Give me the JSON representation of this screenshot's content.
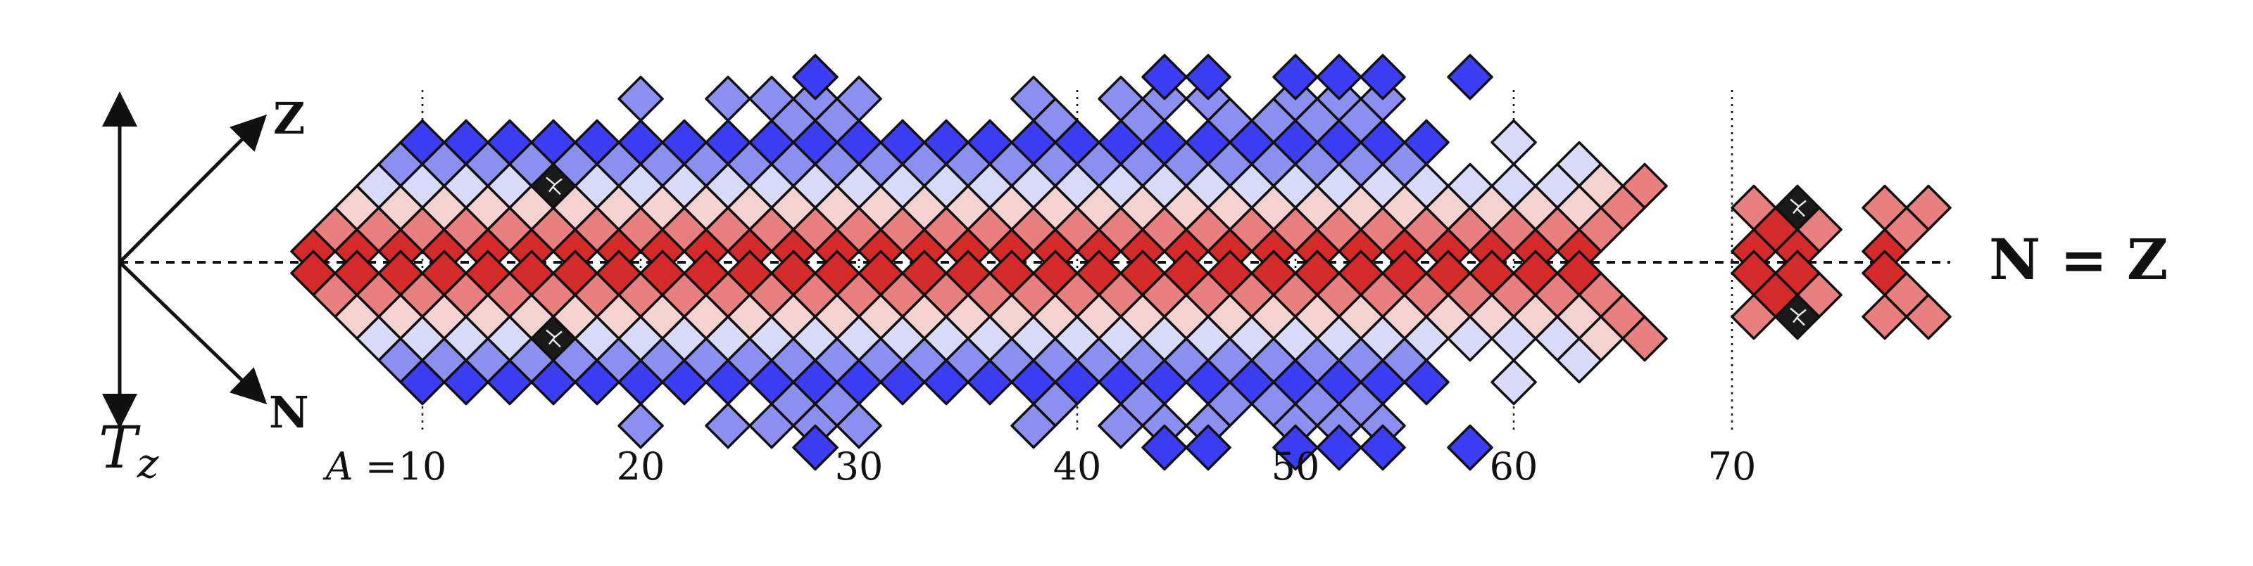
{
  "axes": {
    "vertical_label": "T",
    "vertical_subscript": "z",
    "z_label": "Z",
    "n_label": "N",
    "symmetry_label": "N = Z"
  },
  "mass_ticks": {
    "prefix": "A",
    "labels": [
      "10",
      "20",
      "30",
      "40",
      "50",
      "60",
      "70"
    ],
    "values": [
      10,
      20,
      30,
      40,
      50,
      60,
      70
    ]
  },
  "colors": {
    "cell_border": "#111111",
    "red_deep": "#d42a2a",
    "red_mid": "#e87f7f",
    "red_light": "#f5d2d2",
    "blue_light": "#d8daf8",
    "blue_mid": "#8b8ff0",
    "blue_deep": "#3c3cf2",
    "special": "#1a1a1a"
  },
  "chart_data": {
    "type": "heatmap",
    "x_quantity": "A",
    "y_quantity": "T_z",
    "color_scale": [
      "red_deep",
      "red_mid",
      "red_light",
      "blue_light",
      "blue_mid",
      "blue_deep"
    ],
    "columns": [
      {
        "A": 5,
        "cells": [
          "3:1",
          "4:1"
        ]
      },
      {
        "A": 6,
        "cells": [
          "2:2",
          "5:2"
        ]
      },
      {
        "A": 7,
        "cells": [
          "3:1",
          "4:1",
          "1:3",
          "6:3"
        ]
      },
      {
        "A": 8,
        "cells": [
          "2:2",
          "5:2",
          "0:4",
          "7:4"
        ]
      },
      {
        "A": 9,
        "cells": [
          "3:1",
          "4:1",
          "1:3",
          "6:3",
          "-1:5",
          "8:5"
        ]
      },
      {
        "A": 10,
        "cells": [
          "2:2",
          "5:2",
          "0:4",
          "7:4",
          "-2:6",
          "9:6"
        ]
      },
      {
        "A": 11,
        "cells": [
          "3:1",
          "4:1",
          "1:3",
          "6:3",
          "-1:5",
          "8:5"
        ]
      },
      {
        "A": 12,
        "cells": [
          "2:2",
          "5:2",
          "0:4",
          "7:4",
          "-2:6",
          "9:6"
        ]
      },
      {
        "A": 13,
        "cells": [
          "3:1",
          "4:1",
          "1:3",
          "6:3",
          "-1:5",
          "8:5"
        ]
      },
      {
        "A": 14,
        "cells": [
          "2:2",
          "5:2",
          "0:4",
          "7:4",
          "-2:6",
          "9:6"
        ]
      },
      {
        "A": 15,
        "cells": [
          "3:1",
          "4:1",
          "1:3",
          "6:3",
          "-1:5",
          "8:5"
        ]
      },
      {
        "A": 16,
        "cells": [
          "2:2",
          "5:2",
          "0:7",
          "7:7",
          "-2:6",
          "9:6"
        ]
      },
      {
        "A": 17,
        "cells": [
          "3:1",
          "4:1",
          "1:3",
          "6:3",
          "-1:5",
          "8:5"
        ]
      },
      {
        "A": 18,
        "cells": [
          "2:2",
          "5:2",
          "0:4",
          "7:4",
          "-2:6",
          "9:6"
        ]
      },
      {
        "A": 19,
        "cells": [
          "3:1",
          "4:1",
          "1:3",
          "6:3",
          "-1:5",
          "8:5"
        ]
      },
      {
        "A": 20,
        "cells": [
          "2:2",
          "5:2",
          "0:4",
          "7:4",
          "-2:6",
          "9:6",
          "-4:5",
          "11:5"
        ]
      },
      {
        "A": 21,
        "cells": [
          "3:1",
          "4:1",
          "1:3",
          "6:3",
          "-1:5",
          "8:5"
        ]
      },
      {
        "A": 22,
        "cells": [
          "2:2",
          "5:2",
          "0:4",
          "7:4",
          "-2:6",
          "9:6"
        ]
      },
      {
        "A": 23,
        "cells": [
          "3:1",
          "4:1",
          "1:3",
          "6:3",
          "-1:5",
          "8:5"
        ]
      },
      {
        "A": 24,
        "cells": [
          "2:2",
          "5:2",
          "0:4",
          "7:4",
          "-2:6",
          "9:6",
          "-4:5",
          "11:5"
        ]
      },
      {
        "A": 25,
        "cells": [
          "3:1",
          "4:1",
          "1:3",
          "6:3",
          "-1:5",
          "8:5"
        ]
      },
      {
        "A": 26,
        "cells": [
          "2:2",
          "5:2",
          "0:4",
          "7:4",
          "-2:6",
          "9:6",
          "-4:5",
          "11:5"
        ]
      },
      {
        "A": 27,
        "cells": [
          "3:1",
          "4:1",
          "1:3",
          "6:3",
          "-1:5",
          "8:5",
          "-3:5",
          "10:5"
        ]
      },
      {
        "A": 28,
        "cells": [
          "2:2",
          "5:2",
          "0:4",
          "7:4",
          "-2:6",
          "9:6",
          "-4:5",
          "11:5",
          "-5:6",
          "12:6"
        ]
      },
      {
        "A": 29,
        "cells": [
          "3:1",
          "4:1",
          "1:3",
          "6:3",
          "-1:5",
          "8:5",
          "-3:5",
          "10:5"
        ]
      },
      {
        "A": 30,
        "cells": [
          "2:2",
          "5:2",
          "0:4",
          "7:4",
          "-2:6",
          "9:6",
          "-4:5",
          "11:5"
        ]
      },
      {
        "A": 31,
        "cells": [
          "3:1",
          "4:1",
          "1:3",
          "6:3",
          "-1:5",
          "8:5"
        ]
      },
      {
        "A": 32,
        "cells": [
          "2:2",
          "5:2",
          "0:4",
          "7:4",
          "-2:6",
          "9:6"
        ]
      },
      {
        "A": 33,
        "cells": [
          "3:1",
          "4:1",
          "1:3",
          "6:3",
          "-1:5",
          "8:5"
        ]
      },
      {
        "A": 34,
        "cells": [
          "2:2",
          "5:2",
          "0:4",
          "7:4",
          "-2:6",
          "9:6"
        ]
      },
      {
        "A": 35,
        "cells": [
          "3:1",
          "4:1",
          "1:3",
          "6:3",
          "-1:5",
          "8:5"
        ]
      },
      {
        "A": 36,
        "cells": [
          "2:2",
          "5:2",
          "0:4",
          "7:4",
          "-2:6",
          "9:6"
        ]
      },
      {
        "A": 37,
        "cells": [
          "3:1",
          "4:1",
          "1:3",
          "6:3",
          "-1:5",
          "8:5"
        ]
      },
      {
        "A": 38,
        "cells": [
          "2:2",
          "5:2",
          "0:4",
          "7:4",
          "-2:6",
          "9:6",
          "-4:5",
          "11:5"
        ]
      },
      {
        "A": 39,
        "cells": [
          "3:1",
          "4:1",
          "1:3",
          "6:3",
          "-1:5",
          "8:5",
          "-3:5",
          "10:5"
        ]
      },
      {
        "A": 40,
        "cells": [
          "2:2",
          "5:2",
          "0:4",
          "7:4",
          "-2:6",
          "9:6"
        ]
      },
      {
        "A": 41,
        "cells": [
          "3:1",
          "4:1",
          "1:3",
          "6:3",
          "-1:5",
          "8:5"
        ]
      },
      {
        "A": 42,
        "cells": [
          "2:2",
          "5:2",
          "0:4",
          "7:4",
          "-2:6",
          "9:6",
          "-4:5",
          "11:5"
        ]
      },
      {
        "A": 43,
        "cells": [
          "3:1",
          "4:1",
          "1:3",
          "6:3",
          "-1:5",
          "8:5",
          "-3:5",
          "10:5"
        ]
      },
      {
        "A": 44,
        "cells": [
          "2:2",
          "5:2",
          "0:4",
          "7:4",
          "-2:6",
          "9:6",
          "-4:5",
          "11:5",
          "-5:6",
          "12:6"
        ]
      },
      {
        "A": 45,
        "cells": [
          "3:1",
          "4:1",
          "1:3",
          "6:3",
          "-1:5",
          "8:5"
        ]
      },
      {
        "A": 46,
        "cells": [
          "2:2",
          "5:2",
          "0:4",
          "7:4",
          "-2:6",
          "9:6",
          "-4:5",
          "11:5",
          "-5:6",
          "12:6"
        ]
      },
      {
        "A": 47,
        "cells": [
          "3:1",
          "4:1",
          "1:3",
          "6:3",
          "-1:5",
          "8:5",
          "-3:5",
          "10:5"
        ]
      },
      {
        "A": 48,
        "cells": [
          "2:2",
          "5:2",
          "0:4",
          "7:4",
          "-2:6",
          "9:6"
        ]
      },
      {
        "A": 49,
        "cells": [
          "3:1",
          "4:1",
          "1:3",
          "6:3",
          "-1:5",
          "8:5",
          "-3:5",
          "10:5"
        ]
      },
      {
        "A": 50,
        "cells": [
          "2:2",
          "5:2",
          "0:4",
          "7:4",
          "-2:6",
          "9:6",
          "-4:5",
          "11:5",
          "-5:6",
          "12:6"
        ]
      },
      {
        "A": 51,
        "cells": [
          "3:1",
          "4:1",
          "1:3",
          "6:3",
          "-1:5",
          "8:5",
          "-3:5",
          "10:5"
        ]
      },
      {
        "A": 52,
        "cells": [
          "2:2",
          "5:2",
          "0:4",
          "7:4",
          "-2:6",
          "9:6",
          "-4:5",
          "11:5",
          "-5:6",
          "12:6"
        ]
      },
      {
        "A": 53,
        "cells": [
          "3:1",
          "4:1",
          "1:3",
          "6:3",
          "-1:5",
          "8:5",
          "-3:5",
          "10:5"
        ]
      },
      {
        "A": 54,
        "cells": [
          "2:2",
          "5:2",
          "0:4",
          "7:4",
          "-2:6",
          "9:6",
          "-4:5",
          "11:5",
          "-5:6",
          "12:6"
        ]
      },
      {
        "A": 55,
        "cells": [
          "3:1",
          "4:1",
          "1:3",
          "6:3",
          "-1:5",
          "8:5"
        ]
      },
      {
        "A": 56,
        "cells": [
          "2:2",
          "5:2",
          "0:4",
          "7:4",
          "-2:6",
          "9:6"
        ]
      },
      {
        "A": 57,
        "cells": [
          "3:1",
          "4:1",
          "1:3",
          "6:3"
        ]
      },
      {
        "A": 58,
        "cells": [
          "2:2",
          "5:2",
          "0:4",
          "7:4",
          "-5:6",
          "12:6"
        ]
      },
      {
        "A": 59,
        "cells": [
          "3:1",
          "4:1",
          "1:3",
          "6:3"
        ]
      },
      {
        "A": 60,
        "cells": [
          "2:2",
          "5:2",
          "0:4",
          "7:4",
          "-2:4",
          "9:4"
        ]
      },
      {
        "A": 61,
        "cells": [
          "3:1",
          "4:1",
          "1:3",
          "6:3"
        ]
      },
      {
        "A": 62,
        "cells": [
          "2:2",
          "5:2",
          "0:4",
          "7:4"
        ]
      },
      {
        "A": 63,
        "cells": [
          "3:1",
          "4:1",
          "1:3",
          "6:3",
          "-1:4",
          "8:4"
        ]
      },
      {
        "A": 64,
        "cells": [
          "2:2",
          "5:2",
          "0:3",
          "7:3"
        ]
      },
      {
        "A": 65,
        "cells": [
          "1:2",
          "6:2"
        ]
      },
      {
        "A": 66,
        "cells": [
          "0:2",
          "7:2"
        ]
      },
      {
        "A": 71,
        "cells": [
          "3:1",
          "4:1",
          "1:2",
          "6:2"
        ]
      },
      {
        "A": 72,
        "cells": [
          "2:1",
          "5:1"
        ]
      },
      {
        "A": 73,
        "cells": [
          "3:1",
          "4:1",
          "1:7",
          "6:7"
        ]
      },
      {
        "A": 74,
        "cells": [
          "2:2",
          "5:2"
        ]
      },
      {
        "A": 77,
        "cells": [
          "3:1",
          "4:1",
          "1:2",
          "6:2"
        ]
      },
      {
        "A": 78,
        "cells": [
          "2:2",
          "5:2"
        ]
      },
      {
        "A": 79,
        "cells": [
          "1:2",
          "6:2"
        ]
      }
    ]
  }
}
